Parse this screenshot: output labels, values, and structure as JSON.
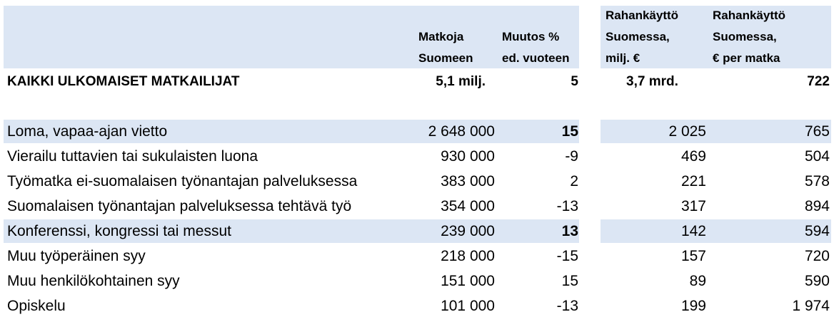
{
  "headers": {
    "trips": "Matkoja\nSuomeen",
    "change": "Muutos %\ned. vuoteen",
    "spend_total": "Rahankäyttö\nSuomessa,\nmilj. €",
    "spend_per_trip": "Rahankäyttö\nSuomessa,\n€ per matka"
  },
  "total": {
    "label": "KAIKKI ULKOMAISET MATKAILIJAT",
    "trips": "5,1 milj.",
    "change": "5",
    "spend_total": "3,7 mrd.",
    "spend_per_trip": "722"
  },
  "rows": [
    {
      "label": "Loma, vapaa-ajan vietto",
      "trips": "2 648 000",
      "change": "15",
      "spend_total": "2 025",
      "spend_per_trip": "765",
      "highlight": true
    },
    {
      "label": "Vierailu tuttavien tai sukulaisten luona",
      "trips": "930 000",
      "change": "-9",
      "spend_total": "469",
      "spend_per_trip": "504",
      "highlight": false
    },
    {
      "label": "Työmatka ei-suomalaisen työnantajan palveluksessa",
      "trips": "383 000",
      "change": "2",
      "spend_total": "221",
      "spend_per_trip": "578",
      "highlight": false
    },
    {
      "label": "Suomalaisen työnantajan palveluksessa tehtävä työ",
      "trips": "354 000",
      "change": "-13",
      "spend_total": "317",
      "spend_per_trip": "894",
      "highlight": false
    },
    {
      "label": "Konferenssi, kongressi tai messut",
      "trips": "239 000",
      "change": "13",
      "spend_total": "142",
      "spend_per_trip": "594",
      "highlight": true
    },
    {
      "label": "Muu työperäinen syy",
      "trips": "218 000",
      "change": "-15",
      "spend_total": "157",
      "spend_per_trip": "720",
      "highlight": false
    },
    {
      "label": "Muu henkilökohtainen syy",
      "trips": "151 000",
      "change": "15",
      "spend_total": "89",
      "spend_per_trip": "590",
      "highlight": false
    },
    {
      "label": "Opiskelu",
      "trips": "101 000",
      "change": "-13",
      "spend_total": "199",
      "spend_per_trip": "1 974",
      "highlight": false
    }
  ]
}
